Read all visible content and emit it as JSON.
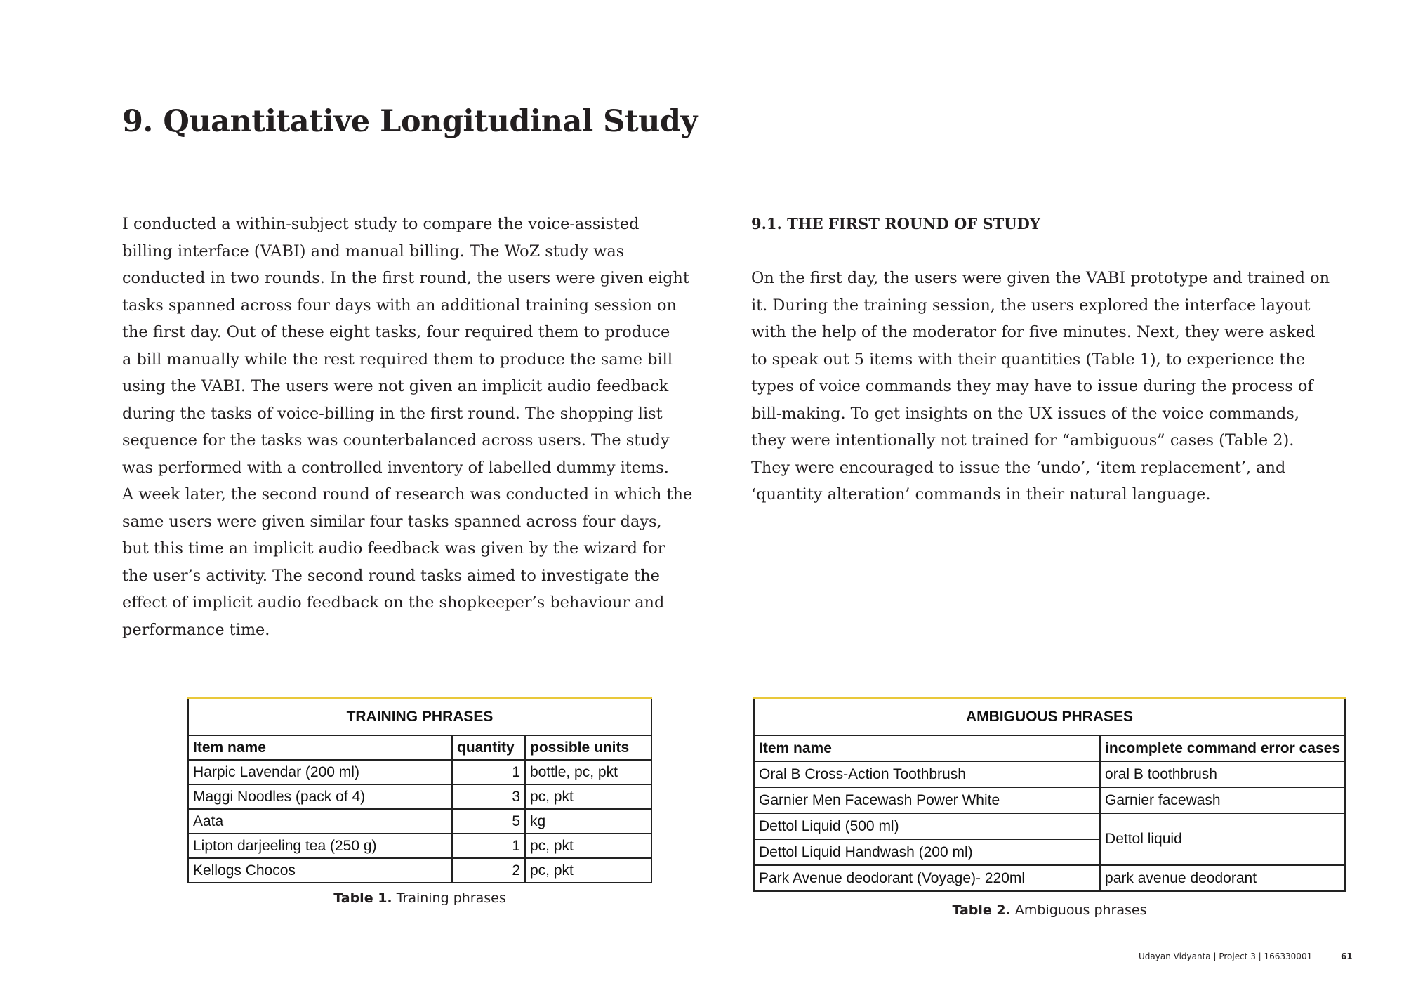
{
  "title": "9. Quantitative Longitudinal Study",
  "left_column": {
    "lines": [
      "I conducted a within-subject study to compare the voice-assisted",
      "billing interface (VABI) and manual billing. The WoZ study was",
      "conducted in two rounds. In the first round, the users were given eight",
      "tasks spanned across four days with an additional training session on",
      "the first day. Out of these eight tasks, four required them to produce",
      "a bill manually while the rest required them to produce the same bill",
      "using the VABI. The users were not given an implicit audio feedback",
      "during the tasks of voice-billing in the first round. The shopping list",
      "sequence for the tasks was counterbalanced across users. The study",
      "was performed with a controlled inventory of labelled dummy items.",
      "A week later, the second round of research was conducted in which the",
      "same users were given similar four tasks spanned across four days,",
      "but this time an implicit audio feedback was given by the wizard for",
      "the user’s activity. The second round tasks aimed to investigate the",
      "effect of implicit audio feedback on the shopkeeper’s behaviour and",
      "performance time."
    ]
  },
  "right_column": {
    "heading": "9.1. THE FIRST ROUND OF STUDY",
    "lines": [
      "On the first day, the users were given the VABI prototype and trained on",
      "it. During the training session, the users explored the interface layout",
      "with the help of the moderator for five minutes. Next, they were asked",
      "to speak out 5 items with their quantities (Table 1), to experience the",
      "types of voice commands they may have to issue during the process of",
      "bill-making. To get insights on the UX issues of the voice commands,",
      "they were intentionally not trained for “ambiguous” cases (Table 2).",
      "They were encouraged to issue the ‘undo’, ‘item replacement’, and",
      "‘quantity alteration’ commands in their natural language."
    ]
  },
  "table1": {
    "title": "TRAINING PHRASES",
    "headers": [
      "Item name",
      "quantity",
      "possible units"
    ],
    "rows": [
      [
        "Harpic Lavendar (200 ml)",
        "1",
        "bottle, pc, pkt"
      ],
      [
        "Maggi Noodles (pack of 4)",
        "3",
        "pc, pkt"
      ],
      [
        "Aata",
        "5",
        "kg"
      ],
      [
        "Lipton darjeeling tea (250 g)",
        "1",
        "pc, pkt"
      ],
      [
        "Kellogs Chocos",
        "2",
        "pc, pkt"
      ]
    ],
    "caption_label": "Table 1.",
    "caption_text": "Training phrases"
  },
  "table2": {
    "title": "AMBIGUOUS PHRASES",
    "headers": [
      "Item name",
      "incomplete command error cases"
    ],
    "rows": [
      [
        "Oral B Cross-Action Toothbrush",
        "oral B toothbrush"
      ],
      [
        "Garnier Men Facewash Power White",
        "Garnier facewash"
      ],
      [
        "Dettol Liquid (500 ml)",
        "Dettol liquid"
      ],
      [
        "Dettol Liquid Handwash (200 ml)",
        ""
      ],
      [
        "Park Avenue deodorant (Voyage)- 220ml",
        "park avenue deodorant"
      ]
    ],
    "caption_label": "Table 2.",
    "caption_text": "Ambiguous phrases"
  },
  "footer": {
    "text": "Udayan Vidyanta | Project 3 | 166330001",
    "page_number": "61"
  },
  "colors": {
    "table_top_accent": "#e9c83a",
    "text": "#231f20"
  }
}
